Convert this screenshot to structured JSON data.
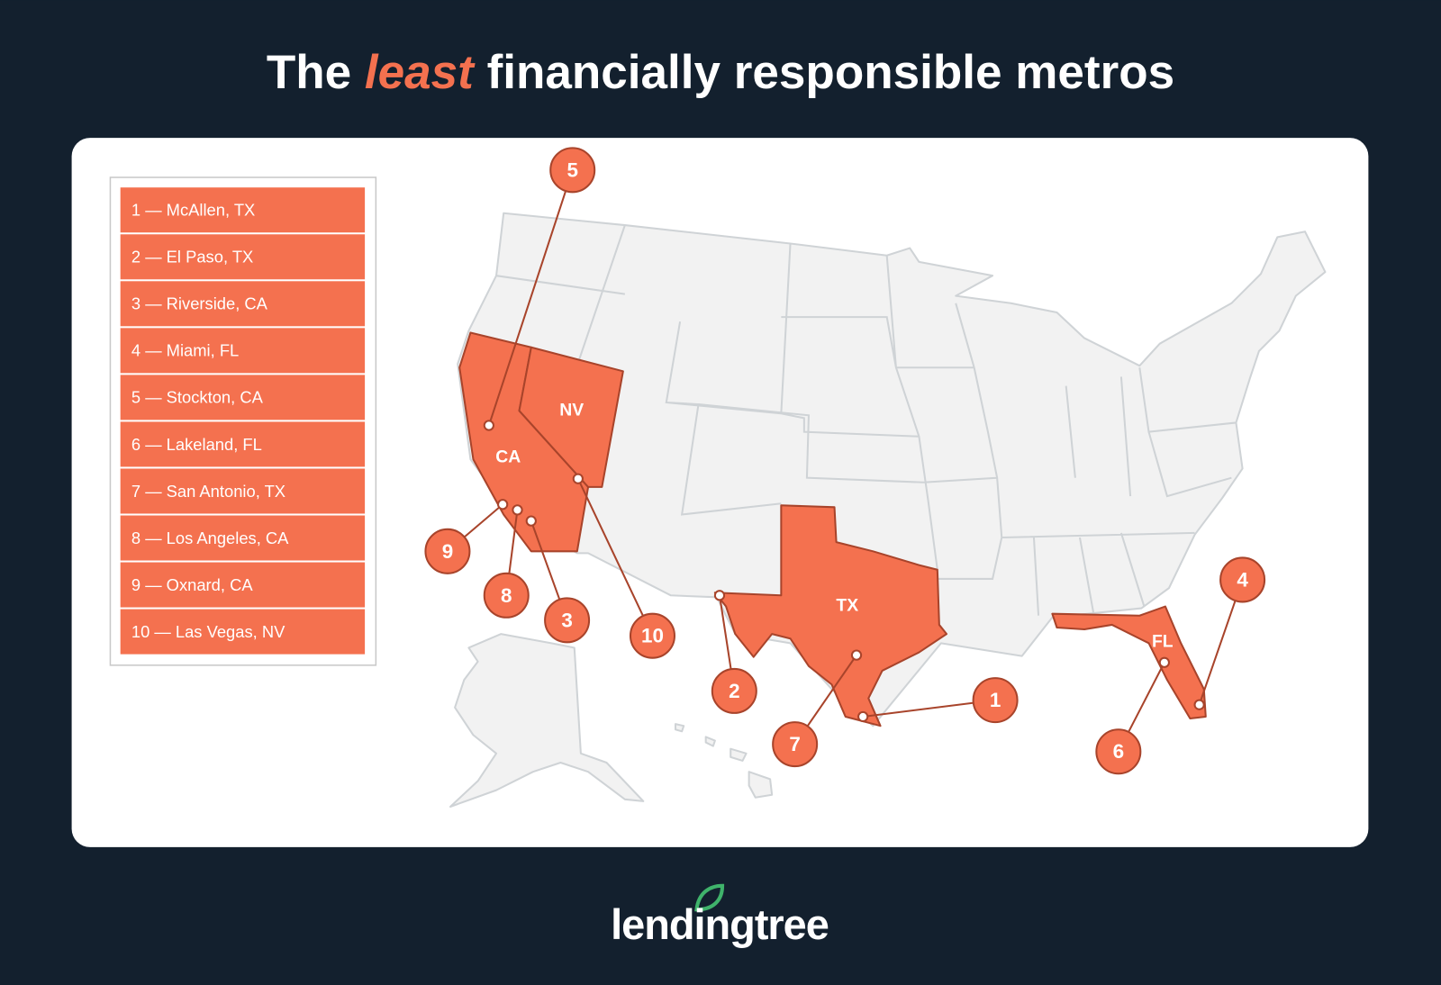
{
  "title": {
    "before": "The",
    "emphasis": "least",
    "after": "financially responsible metros"
  },
  "legend": {
    "items": [
      "1 — McAllen, TX",
      "2 — El Paso, TX",
      "3 — Riverside, CA",
      "4 — Miami, FL",
      "5 — Stockton, CA",
      "6 — Lakeland, FL",
      "7 — San Antonio, TX",
      "8 — Los Angeles, CA",
      "9 — Oxnard, CA",
      "10 — Las Vegas, NV"
    ]
  },
  "map": {
    "states": [
      "CA",
      "NV",
      "TX",
      "FL"
    ],
    "markers": [
      "1",
      "2",
      "3",
      "4",
      "5",
      "6",
      "7",
      "8",
      "9",
      "10"
    ]
  },
  "logo": "lendingtree"
}
